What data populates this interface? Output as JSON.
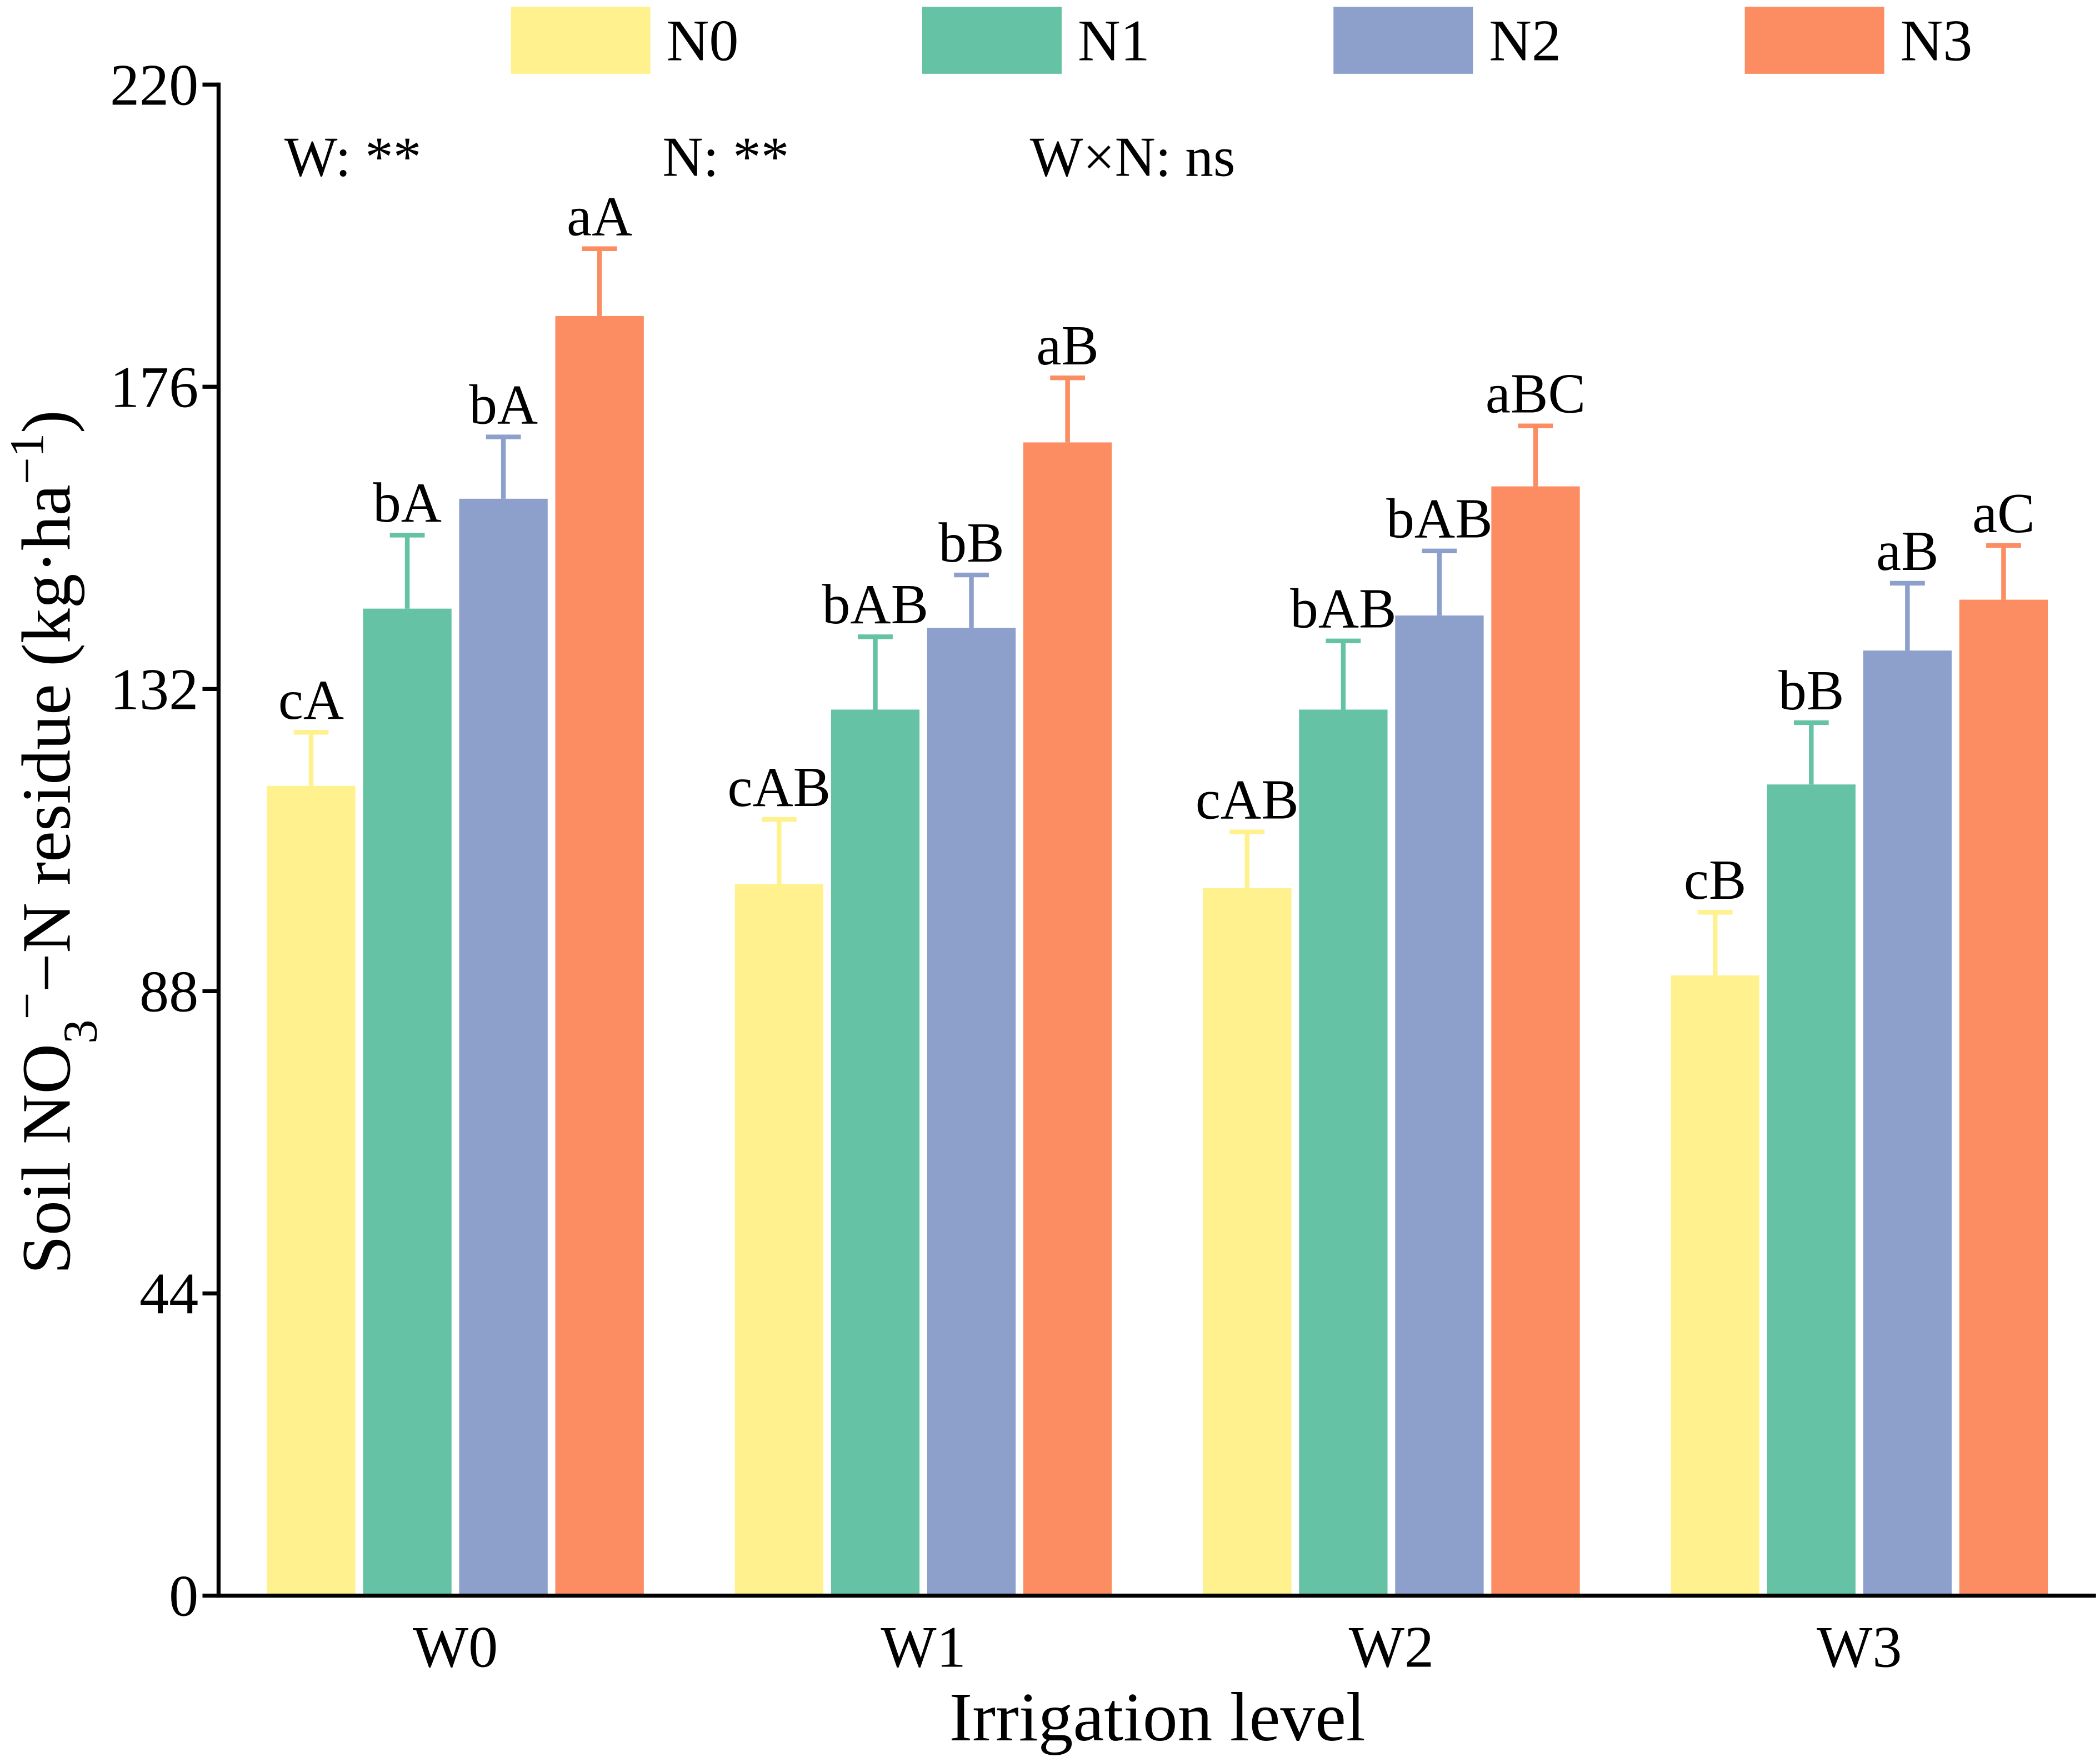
{
  "chart_data": {
    "type": "bar",
    "categories": [
      "W0",
      "W1",
      "W2",
      "W3"
    ],
    "xlabel": "Irrigation level",
    "ylabel": [
      "Soil NO",
      "3",
      "−",
      "−N residue (kg·ha",
      "−1",
      ")"
    ],
    "ylim": [
      0,
      220
    ],
    "yticks": [
      0,
      44,
      88,
      132,
      176,
      220
    ],
    "grid": false,
    "legend_position": "top",
    "annotations": [
      "W: **",
      "N: **",
      "W×N: ns"
    ],
    "series": [
      {
        "name": "N0",
        "color": "#FFF28E",
        "values": [
          117.9,
          103.6,
          103.0,
          90.3
        ],
        "errors": [
          7.8,
          9.4,
          8.2,
          9.2
        ],
        "labels": [
          "cA",
          "cAB",
          "cAB",
          "cB"
        ]
      },
      {
        "name": "N1",
        "color": "#66C2A5",
        "values": [
          143.7,
          129.0,
          129.0,
          118.1
        ],
        "errors": [
          10.7,
          10.6,
          10.0,
          9.0
        ],
        "labels": [
          "bA",
          "bAB",
          "bAB",
          "bB"
        ]
      },
      {
        "name": "N2",
        "color": "#8DA0CB",
        "values": [
          159.7,
          140.9,
          142.7,
          137.6
        ],
        "errors": [
          9.0,
          7.7,
          9.4,
          9.8
        ],
        "labels": [
          "bA",
          "bB",
          "bAB",
          "aB"
        ]
      },
      {
        "name": "N3",
        "color": "#FC8D62",
        "values": [
          186.3,
          167.9,
          161.5,
          145.0
        ],
        "errors": [
          9.8,
          9.4,
          8.8,
          7.9
        ],
        "labels": [
          "aA",
          "aB",
          "aBC",
          "aC"
        ]
      }
    ]
  }
}
